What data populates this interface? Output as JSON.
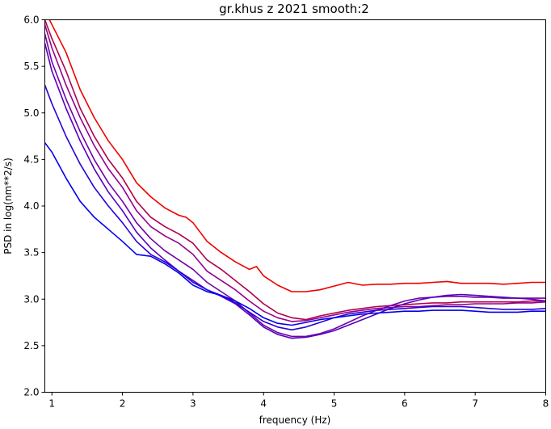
{
  "chart_data": {
    "type": "line",
    "title": "gr.khus z 2021 smooth:2",
    "xlabel": "frequency (Hz)",
    "ylabel": "PSD in log(nm**2/s)",
    "xlim": [
      0.9,
      8.0
    ],
    "ylim": [
      2.0,
      6.0
    ],
    "xticks": [
      1,
      2,
      3,
      4,
      5,
      6,
      7,
      8
    ],
    "yticks": [
      2.0,
      2.5,
      3.0,
      3.5,
      4.0,
      4.5,
      5.0,
      5.5,
      6.0
    ],
    "xtick_labels": [
      "1",
      "2",
      "3",
      "4",
      "5",
      "6",
      "7",
      "8"
    ],
    "ytick_labels": [
      "2.0",
      "2.5",
      "3.0",
      "3.5",
      "4.0",
      "4.5",
      "5.0",
      "5.5",
      "6.0"
    ],
    "grid": false,
    "series": [
      {
        "color": "#ee0000",
        "x": [
          0.9,
          1.0,
          1.2,
          1.4,
          1.6,
          1.8,
          2.0,
          2.2,
          2.4,
          2.6,
          2.8,
          2.9,
          3.0,
          3.2,
          3.4,
          3.6,
          3.8,
          3.9,
          4.0,
          4.2,
          4.4,
          4.6,
          4.8,
          5.0,
          5.2,
          5.4,
          5.6,
          5.8,
          6.0,
          6.2,
          6.4,
          6.6,
          6.8,
          7.0,
          7.2,
          7.4,
          7.6,
          7.8,
          8.0
        ],
        "y": [
          6.1,
          5.95,
          5.65,
          5.25,
          4.95,
          4.7,
          4.5,
          4.25,
          4.1,
          3.98,
          3.9,
          3.88,
          3.82,
          3.62,
          3.5,
          3.4,
          3.32,
          3.35,
          3.25,
          3.15,
          3.08,
          3.08,
          3.1,
          3.14,
          3.18,
          3.15,
          3.16,
          3.16,
          3.17,
          3.17,
          3.18,
          3.19,
          3.17,
          3.17,
          3.17,
          3.16,
          3.17,
          3.18,
          3.18
        ]
      },
      {
        "color": "#b0004d",
        "x": [
          0.9,
          1.0,
          1.2,
          1.4,
          1.6,
          1.8,
          2.0,
          2.2,
          2.4,
          2.6,
          2.8,
          3.0,
          3.2,
          3.4,
          3.6,
          3.8,
          4.0,
          4.2,
          4.4,
          4.6,
          4.8,
          5.0,
          5.2,
          5.4,
          5.6,
          5.8,
          6.0,
          6.2,
          6.4,
          6.6,
          6.8,
          7.0,
          7.2,
          7.4,
          7.6,
          7.8,
          8.0
        ],
        "y": [
          6.0,
          5.8,
          5.45,
          5.05,
          4.75,
          4.5,
          4.3,
          4.05,
          3.88,
          3.78,
          3.7,
          3.6,
          3.42,
          3.32,
          3.2,
          3.08,
          2.95,
          2.85,
          2.8,
          2.78,
          2.82,
          2.85,
          2.88,
          2.9,
          2.92,
          2.93,
          2.94,
          2.95,
          2.96,
          2.96,
          2.97,
          2.97,
          2.97,
          2.97,
          2.97,
          2.98,
          2.98
        ]
      },
      {
        "color": "#94008f",
        "x": [
          0.9,
          1.0,
          1.2,
          1.4,
          1.6,
          1.8,
          2.0,
          2.2,
          2.4,
          2.6,
          2.8,
          3.0,
          3.2,
          3.4,
          3.6,
          3.8,
          4.0,
          4.2,
          4.4,
          4.6,
          4.8,
          5.0,
          5.2,
          5.4,
          5.6,
          5.8,
          6.0,
          6.2,
          6.4,
          6.6,
          6.8,
          7.0,
          7.2,
          7.4,
          7.6,
          7.8,
          8.0
        ],
        "y": [
          5.95,
          5.7,
          5.3,
          4.95,
          4.65,
          4.4,
          4.2,
          3.95,
          3.78,
          3.68,
          3.6,
          3.48,
          3.3,
          3.2,
          3.1,
          2.98,
          2.87,
          2.8,
          2.76,
          2.77,
          2.8,
          2.83,
          2.86,
          2.88,
          2.9,
          2.91,
          2.92,
          2.92,
          2.93,
          2.94,
          2.94,
          2.95,
          2.95,
          2.95,
          2.96,
          2.96,
          2.97
        ]
      },
      {
        "color": "#7000a8",
        "x": [
          0.9,
          1.0,
          1.2,
          1.4,
          1.6,
          1.8,
          2.0,
          2.2,
          2.4,
          2.6,
          2.8,
          3.0,
          3.2,
          3.4,
          3.6,
          3.8,
          4.0,
          4.2,
          4.4,
          4.6,
          4.8,
          5.0,
          5.2,
          5.4,
          5.6,
          5.8,
          6.0,
          6.2,
          6.4,
          6.6,
          6.8,
          7.0,
          7.2,
          7.4,
          7.6,
          7.8,
          8.0
        ],
        "y": [
          5.85,
          5.55,
          5.15,
          4.8,
          4.5,
          4.25,
          4.05,
          3.82,
          3.65,
          3.52,
          3.42,
          3.32,
          3.18,
          3.08,
          2.98,
          2.85,
          2.72,
          2.64,
          2.6,
          2.6,
          2.63,
          2.68,
          2.75,
          2.82,
          2.88,
          2.93,
          2.98,
          3.01,
          3.02,
          3.03,
          3.03,
          3.02,
          3.02,
          3.01,
          3.01,
          3.01,
          3.01
        ]
      },
      {
        "color": "#5500c0",
        "x": [
          0.9,
          1.0,
          1.2,
          1.4,
          1.6,
          1.8,
          2.0,
          2.2,
          2.4,
          2.6,
          2.8,
          3.0,
          3.2,
          3.4,
          3.6,
          3.8,
          4.0,
          4.2,
          4.4,
          4.6,
          4.8,
          5.0,
          5.2,
          5.4,
          5.6,
          5.8,
          6.0,
          6.2,
          6.4,
          6.6,
          6.8,
          7.0,
          7.2,
          7.4,
          7.6,
          7.8,
          8.0
        ],
        "y": [
          5.75,
          5.45,
          5.05,
          4.7,
          4.4,
          4.15,
          3.95,
          3.72,
          3.55,
          3.42,
          3.3,
          3.2,
          3.1,
          3.03,
          2.95,
          2.83,
          2.7,
          2.62,
          2.58,
          2.59,
          2.62,
          2.66,
          2.72,
          2.78,
          2.84,
          2.9,
          2.95,
          2.99,
          3.02,
          3.04,
          3.05,
          3.04,
          3.03,
          3.02,
          3.01,
          3.0,
          2.98
        ]
      },
      {
        "color": "#2a00d8",
        "x": [
          0.9,
          1.0,
          1.2,
          1.4,
          1.6,
          1.8,
          2.0,
          2.2,
          2.4,
          2.6,
          2.8,
          3.0,
          3.2,
          3.4,
          3.6,
          3.8,
          4.0,
          4.2,
          4.4,
          4.6,
          4.8,
          5.0,
          5.2,
          5.4,
          5.6,
          5.8,
          6.0,
          6.2,
          6.4,
          6.6,
          6.8,
          7.0,
          7.2,
          7.4,
          7.6,
          7.8,
          8.0
        ],
        "y": [
          5.3,
          5.1,
          4.75,
          4.45,
          4.2,
          4.0,
          3.82,
          3.62,
          3.48,
          3.4,
          3.3,
          3.18,
          3.1,
          3.04,
          2.96,
          2.86,
          2.76,
          2.7,
          2.67,
          2.7,
          2.75,
          2.8,
          2.84,
          2.86,
          2.88,
          2.89,
          2.9,
          2.91,
          2.92,
          2.92,
          2.92,
          2.91,
          2.9,
          2.89,
          2.89,
          2.89,
          2.9
        ]
      },
      {
        "color": "#0000ee",
        "x": [
          0.9,
          1.0,
          1.2,
          1.4,
          1.6,
          1.8,
          2.0,
          2.2,
          2.4,
          2.6,
          2.8,
          3.0,
          3.2,
          3.4,
          3.6,
          3.8,
          4.0,
          4.2,
          4.4,
          4.6,
          4.8,
          5.0,
          5.2,
          5.4,
          5.6,
          5.8,
          6.0,
          6.2,
          6.4,
          6.6,
          6.8,
          7.0,
          7.2,
          7.4,
          7.6,
          7.8,
          8.0
        ],
        "y": [
          4.68,
          4.58,
          4.3,
          4.05,
          3.88,
          3.75,
          3.62,
          3.48,
          3.46,
          3.38,
          3.28,
          3.15,
          3.08,
          3.04,
          2.98,
          2.9,
          2.8,
          2.74,
          2.72,
          2.75,
          2.78,
          2.8,
          2.82,
          2.84,
          2.85,
          2.86,
          2.87,
          2.87,
          2.88,
          2.88,
          2.88,
          2.87,
          2.86,
          2.86,
          2.86,
          2.87,
          2.87
        ]
      }
    ]
  }
}
